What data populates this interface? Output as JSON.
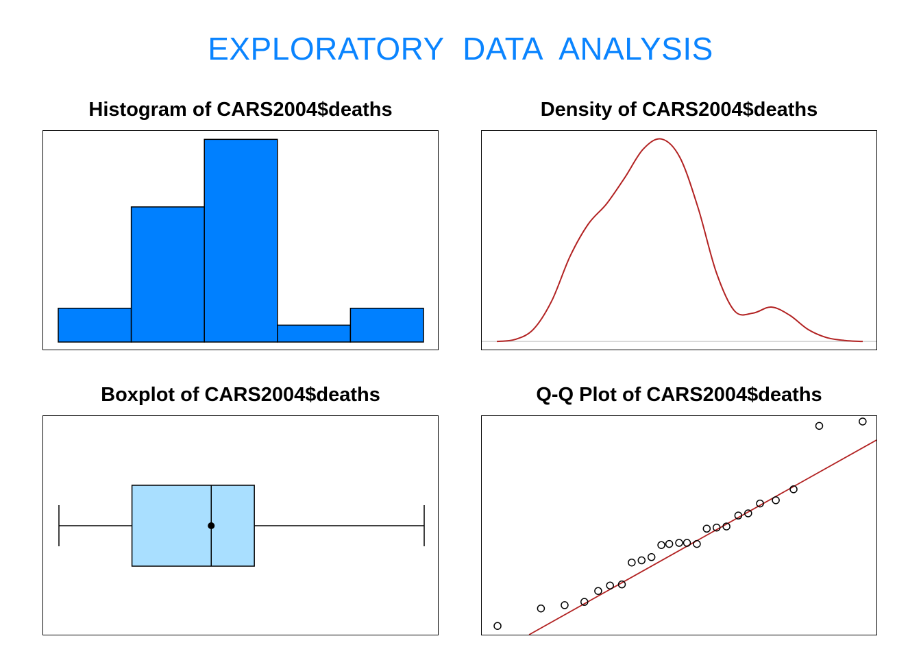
{
  "title": "EXPLORATORY  DATA  ANALYSIS",
  "colors": {
    "title": "#0a84ff",
    "hist_fill": "#0080ff",
    "box_fill": "#a9dfff",
    "density_line": "#b22222",
    "qq_line": "#b22222"
  },
  "chart_data": [
    {
      "type": "bar",
      "title": "Histogram of CARS2004$deaths",
      "bins": [
        [
          0,
          1
        ],
        [
          1,
          2
        ],
        [
          2,
          3
        ],
        [
          3,
          4
        ],
        [
          4,
          5
        ]
      ],
      "values": [
        2,
        8,
        12,
        1,
        2
      ],
      "ylim": [
        0,
        12.5
      ],
      "axes_visible": false
    },
    {
      "type": "line",
      "title": "Density of CARS2004$deaths",
      "x": [
        0,
        0.05,
        0.1,
        0.15,
        0.2,
        0.25,
        0.3,
        0.35,
        0.4,
        0.45,
        0.5,
        0.55,
        0.6,
        0.65,
        0.7,
        0.75,
        0.8,
        0.85,
        0.9,
        0.95,
        1.0
      ],
      "y": [
        0.0,
        0.01,
        0.06,
        0.2,
        0.42,
        0.58,
        0.68,
        0.81,
        0.95,
        1.0,
        0.91,
        0.66,
        0.34,
        0.15,
        0.14,
        0.17,
        0.13,
        0.06,
        0.02,
        0.005,
        0.0
      ],
      "ylim": [
        -0.04,
        1.04
      ],
      "baseline": true,
      "axes_visible": false
    },
    {
      "type": "boxplot",
      "title": "Boxplot of CARS2004$deaths",
      "whisker_low": 0.0,
      "q1": 0.2,
      "median": 0.417,
      "q3": 0.535,
      "whisker_high": 1.0,
      "mean": 0.417,
      "axes_visible": false
    },
    {
      "type": "scatter",
      "title": "Q-Q Plot of CARS2004$deaths",
      "x": [
        0.04,
        0.15,
        0.21,
        0.26,
        0.295,
        0.325,
        0.355,
        0.38,
        0.405,
        0.43,
        0.455,
        0.475,
        0.5,
        0.52,
        0.545,
        0.57,
        0.595,
        0.62,
        0.65,
        0.675,
        0.705,
        0.745,
        0.79,
        0.855,
        0.965
      ],
      "y": [
        0.04,
        0.12,
        0.135,
        0.15,
        0.2,
        0.225,
        0.23,
        0.33,
        0.34,
        0.355,
        0.41,
        0.415,
        0.42,
        0.42,
        0.415,
        0.485,
        0.49,
        0.495,
        0.545,
        0.555,
        0.6,
        0.615,
        0.665,
        0.955,
        0.975
      ],
      "reference_line": {
        "x": [
          0.12,
          1.0
        ],
        "y": [
          0.0,
          0.89
        ]
      },
      "xlim": [
        0,
        1
      ],
      "ylim": [
        0,
        1
      ],
      "axes_visible": false
    }
  ]
}
